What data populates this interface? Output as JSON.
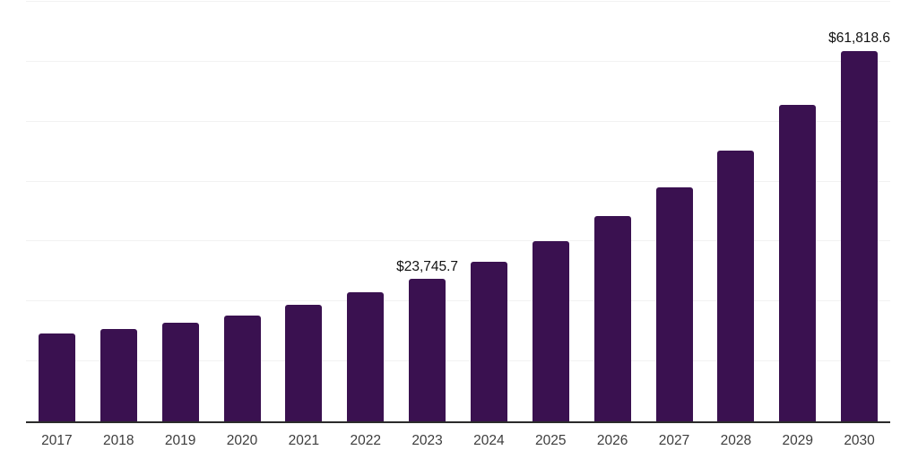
{
  "chart_data": {
    "type": "bar",
    "title": "",
    "xlabel": "",
    "ylabel": "",
    "categories": [
      "2017",
      "2018",
      "2019",
      "2020",
      "2021",
      "2022",
      "2023",
      "2024",
      "2025",
      "2026",
      "2027",
      "2028",
      "2029",
      "2030"
    ],
    "values": [
      14600,
      15360,
      16450,
      17650,
      19450,
      21540,
      23745.7,
      26630,
      30000,
      34210,
      39000,
      45220,
      52850,
      61818.6
    ],
    "ylim": [
      0,
      70000
    ],
    "gridline_step": 10000,
    "grid": "horizontal",
    "y_tick_labels_visible": false,
    "legend": "none",
    "data_labels": [
      {
        "category": "2023",
        "text": "$23,745.7"
      },
      {
        "category": "2030",
        "text": "$61,818.6"
      }
    ]
  },
  "style": {
    "background_color": "#FFFFFF",
    "bar_color": "#3A1150",
    "gridline_color": "#F2F2F2",
    "axis_line_color": "#2B2B2B",
    "tick_label_color": "#3D3D3D",
    "data_label_color": "#111111"
  }
}
